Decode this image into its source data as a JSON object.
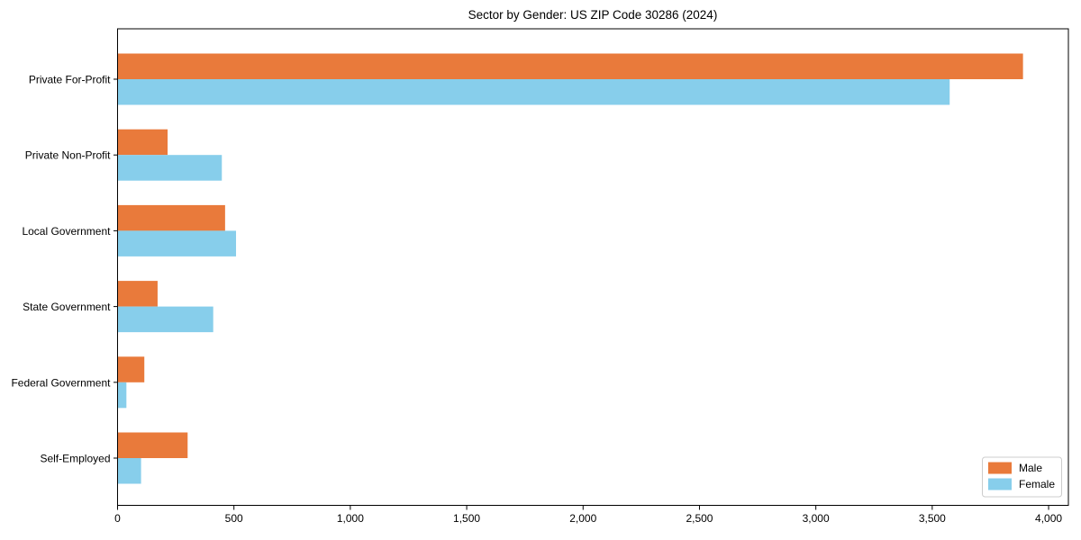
{
  "figure": {
    "background": "#ffffff",
    "axis_color": "#000000",
    "text_color": "#000000"
  },
  "chart_data": {
    "type": "bar",
    "orientation": "horizontal",
    "title": "Sector by Gender: US ZIP Code 30286 (2024)",
    "xlabel": "",
    "ylabel": "",
    "categories": [
      "Private For-Profit",
      "Private Non-Profit",
      "Local Government",
      "State Government",
      "Federal Government",
      "Self-Employed"
    ],
    "series": [
      {
        "name": "Male",
        "color": "#E97A3B",
        "values": [
          3890,
          215,
          462,
          172,
          115,
          301
        ]
      },
      {
        "name": "Female",
        "color": "#87CEEB",
        "values": [
          3575,
          448,
          509,
          411,
          38,
          101
        ]
      }
    ],
    "xlim": [
      0,
      4085
    ],
    "xticks": [
      0,
      500,
      1000,
      1500,
      2000,
      2500,
      3000,
      3500,
      4000
    ],
    "xtick_labels": [
      "0",
      "500",
      "1,000",
      "1,500",
      "2,000",
      "2,500",
      "3,000",
      "3,500",
      "4,000"
    ],
    "grid": false,
    "legend": {
      "position": "lower right",
      "entries": [
        "Male",
        "Female"
      ]
    }
  }
}
